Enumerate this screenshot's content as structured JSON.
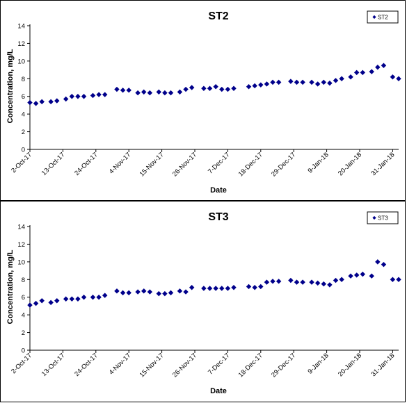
{
  "chart_data": [
    {
      "type": "scatter",
      "title": "ST2",
      "xlabel": "Date",
      "ylabel": "Concentration, mg/L",
      "ylim": [
        0,
        14
      ],
      "yticks": [
        "0",
        "2",
        "4",
        "6",
        "8",
        "10",
        "12",
        "14"
      ],
      "xlim": [
        "2017-10-02",
        "2018-02-02"
      ],
      "xticks": [
        {
          "date": "2017-10-02",
          "label": "2-Oct-17"
        },
        {
          "date": "2017-10-13",
          "label": "13-Oct-17"
        },
        {
          "date": "2017-10-24",
          "label": "24-Oct-17"
        },
        {
          "date": "2017-11-04",
          "label": "4-Nov-17"
        },
        {
          "date": "2017-11-15",
          "label": "15-Nov-17"
        },
        {
          "date": "2017-11-26",
          "label": "26-Nov-17"
        },
        {
          "date": "2017-12-07",
          "label": "7-Dec-17"
        },
        {
          "date": "2017-12-18",
          "label": "18-Dec-17"
        },
        {
          "date": "2017-12-29",
          "label": "29-Dec-17"
        },
        {
          "date": "2018-01-09",
          "label": "9-Jan-18"
        },
        {
          "date": "2018-01-20",
          "label": "20-Jan-18"
        },
        {
          "date": "2018-01-31",
          "label": "31-Jan-18"
        }
      ],
      "legend_position": "top-right",
      "grid": false,
      "marker": "diamond",
      "color": "#00008B",
      "series": [
        {
          "name": "ST2",
          "points": [
            {
              "x": "2017-10-02",
              "y": 5.3
            },
            {
              "x": "2017-10-04",
              "y": 5.2
            },
            {
              "x": "2017-10-06",
              "y": 5.4
            },
            {
              "x": "2017-10-09",
              "y": 5.4
            },
            {
              "x": "2017-10-11",
              "y": 5.5
            },
            {
              "x": "2017-10-14",
              "y": 5.7
            },
            {
              "x": "2017-10-16",
              "y": 6.0
            },
            {
              "x": "2017-10-18",
              "y": 6.0
            },
            {
              "x": "2017-10-20",
              "y": 6.0
            },
            {
              "x": "2017-10-23",
              "y": 6.1
            },
            {
              "x": "2017-10-25",
              "y": 6.2
            },
            {
              "x": "2017-10-27",
              "y": 6.2
            },
            {
              "x": "2017-10-31",
              "y": 6.8
            },
            {
              "x": "2017-11-02",
              "y": 6.7
            },
            {
              "x": "2017-11-04",
              "y": 6.7
            },
            {
              "x": "2017-11-07",
              "y": 6.4
            },
            {
              "x": "2017-11-09",
              "y": 6.5
            },
            {
              "x": "2017-11-11",
              "y": 6.4
            },
            {
              "x": "2017-11-14",
              "y": 6.5
            },
            {
              "x": "2017-11-16",
              "y": 6.4
            },
            {
              "x": "2017-11-18",
              "y": 6.4
            },
            {
              "x": "2017-11-21",
              "y": 6.5
            },
            {
              "x": "2017-11-23",
              "y": 6.8
            },
            {
              "x": "2017-11-25",
              "y": 7.0
            },
            {
              "x": "2017-11-29",
              "y": 6.9
            },
            {
              "x": "2017-12-01",
              "y": 6.9
            },
            {
              "x": "2017-12-03",
              "y": 7.1
            },
            {
              "x": "2017-12-05",
              "y": 6.8
            },
            {
              "x": "2017-12-07",
              "y": 6.8
            },
            {
              "x": "2017-12-09",
              "y": 6.9
            },
            {
              "x": "2017-12-14",
              "y": 7.1
            },
            {
              "x": "2017-12-16",
              "y": 7.2
            },
            {
              "x": "2017-12-18",
              "y": 7.3
            },
            {
              "x": "2017-12-20",
              "y": 7.4
            },
            {
              "x": "2017-12-22",
              "y": 7.6
            },
            {
              "x": "2017-12-24",
              "y": 7.6
            },
            {
              "x": "2017-12-28",
              "y": 7.7
            },
            {
              "x": "2017-12-30",
              "y": 7.6
            },
            {
              "x": "2018-01-01",
              "y": 7.6
            },
            {
              "x": "2018-01-04",
              "y": 7.6
            },
            {
              "x": "2018-01-06",
              "y": 7.4
            },
            {
              "x": "2018-01-08",
              "y": 7.6
            },
            {
              "x": "2018-01-10",
              "y": 7.5
            },
            {
              "x": "2018-01-12",
              "y": 7.8
            },
            {
              "x": "2018-01-14",
              "y": 8.0
            },
            {
              "x": "2018-01-17",
              "y": 8.2
            },
            {
              "x": "2018-01-19",
              "y": 8.7
            },
            {
              "x": "2018-01-21",
              "y": 8.7
            },
            {
              "x": "2018-01-24",
              "y": 8.8
            },
            {
              "x": "2018-01-26",
              "y": 9.3
            },
            {
              "x": "2018-01-28",
              "y": 9.5
            },
            {
              "x": "2018-01-31",
              "y": 8.2
            },
            {
              "x": "2018-02-02",
              "y": 8.0
            }
          ]
        }
      ]
    },
    {
      "type": "scatter",
      "title": "ST3",
      "xlabel": "Date",
      "ylabel": "Concentration, mg/L",
      "ylim": [
        0,
        14
      ],
      "yticks": [
        "0",
        "2",
        "4",
        "6",
        "8",
        "10",
        "12",
        "14"
      ],
      "xlim": [
        "2017-10-02",
        "2018-02-02"
      ],
      "xticks": [
        {
          "date": "2017-10-02",
          "label": "2-Oct-17"
        },
        {
          "date": "2017-10-13",
          "label": "13-Oct-17"
        },
        {
          "date": "2017-10-24",
          "label": "24-Oct-17"
        },
        {
          "date": "2017-11-04",
          "label": "4-Nov-17"
        },
        {
          "date": "2017-11-15",
          "label": "15-Nov-17"
        },
        {
          "date": "2017-11-26",
          "label": "26-Nov-17"
        },
        {
          "date": "2017-12-07",
          "label": "7-Dec-17"
        },
        {
          "date": "2017-12-18",
          "label": "18-Dec-17"
        },
        {
          "date": "2017-12-29",
          "label": "29-Dec-17"
        },
        {
          "date": "2018-01-09",
          "label": "9-Jan-18"
        },
        {
          "date": "2018-01-20",
          "label": "20-Jan-18"
        },
        {
          "date": "2018-01-31",
          "label": "31-Jan-18"
        }
      ],
      "legend_position": "top-right",
      "grid": false,
      "marker": "diamond",
      "color": "#00008B",
      "series": [
        {
          "name": "ST3",
          "points": [
            {
              "x": "2017-10-02",
              "y": 5.1
            },
            {
              "x": "2017-10-04",
              "y": 5.3
            },
            {
              "x": "2017-10-06",
              "y": 5.6
            },
            {
              "x": "2017-10-09",
              "y": 5.4
            },
            {
              "x": "2017-10-11",
              "y": 5.6
            },
            {
              "x": "2017-10-14",
              "y": 5.8
            },
            {
              "x": "2017-10-16",
              "y": 5.8
            },
            {
              "x": "2017-10-18",
              "y": 5.8
            },
            {
              "x": "2017-10-20",
              "y": 6.0
            },
            {
              "x": "2017-10-23",
              "y": 6.0
            },
            {
              "x": "2017-10-25",
              "y": 6.0
            },
            {
              "x": "2017-10-27",
              "y": 6.2
            },
            {
              "x": "2017-10-31",
              "y": 6.7
            },
            {
              "x": "2017-11-02",
              "y": 6.5
            },
            {
              "x": "2017-11-04",
              "y": 6.5
            },
            {
              "x": "2017-11-07",
              "y": 6.6
            },
            {
              "x": "2017-11-09",
              "y": 6.7
            },
            {
              "x": "2017-11-11",
              "y": 6.6
            },
            {
              "x": "2017-11-14",
              "y": 6.4
            },
            {
              "x": "2017-11-16",
              "y": 6.4
            },
            {
              "x": "2017-11-18",
              "y": 6.5
            },
            {
              "x": "2017-11-21",
              "y": 6.7
            },
            {
              "x": "2017-11-23",
              "y": 6.6
            },
            {
              "x": "2017-11-25",
              "y": 7.1
            },
            {
              "x": "2017-11-29",
              "y": 7.0
            },
            {
              "x": "2017-12-01",
              "y": 7.0
            },
            {
              "x": "2017-12-03",
              "y": 7.0
            },
            {
              "x": "2017-12-05",
              "y": 7.0
            },
            {
              "x": "2017-12-07",
              "y": 7.0
            },
            {
              "x": "2017-12-09",
              "y": 7.1
            },
            {
              "x": "2017-12-14",
              "y": 7.2
            },
            {
              "x": "2017-12-16",
              "y": 7.1
            },
            {
              "x": "2017-12-18",
              "y": 7.2
            },
            {
              "x": "2017-12-20",
              "y": 7.7
            },
            {
              "x": "2017-12-22",
              "y": 7.8
            },
            {
              "x": "2017-12-24",
              "y": 7.8
            },
            {
              "x": "2017-12-28",
              "y": 7.9
            },
            {
              "x": "2017-12-30",
              "y": 7.7
            },
            {
              "x": "2018-01-01",
              "y": 7.7
            },
            {
              "x": "2018-01-04",
              "y": 7.7
            },
            {
              "x": "2018-01-06",
              "y": 7.6
            },
            {
              "x": "2018-01-08",
              "y": 7.5
            },
            {
              "x": "2018-01-10",
              "y": 7.4
            },
            {
              "x": "2018-01-12",
              "y": 7.9
            },
            {
              "x": "2018-01-14",
              "y": 8.0
            },
            {
              "x": "2018-01-17",
              "y": 8.4
            },
            {
              "x": "2018-01-19",
              "y": 8.5
            },
            {
              "x": "2018-01-21",
              "y": 8.6
            },
            {
              "x": "2018-01-24",
              "y": 8.4
            },
            {
              "x": "2018-01-26",
              "y": 10.0
            },
            {
              "x": "2018-01-28",
              "y": 9.7
            },
            {
              "x": "2018-01-31",
              "y": 8.0
            },
            {
              "x": "2018-02-02",
              "y": 8.0
            }
          ]
        }
      ]
    }
  ]
}
